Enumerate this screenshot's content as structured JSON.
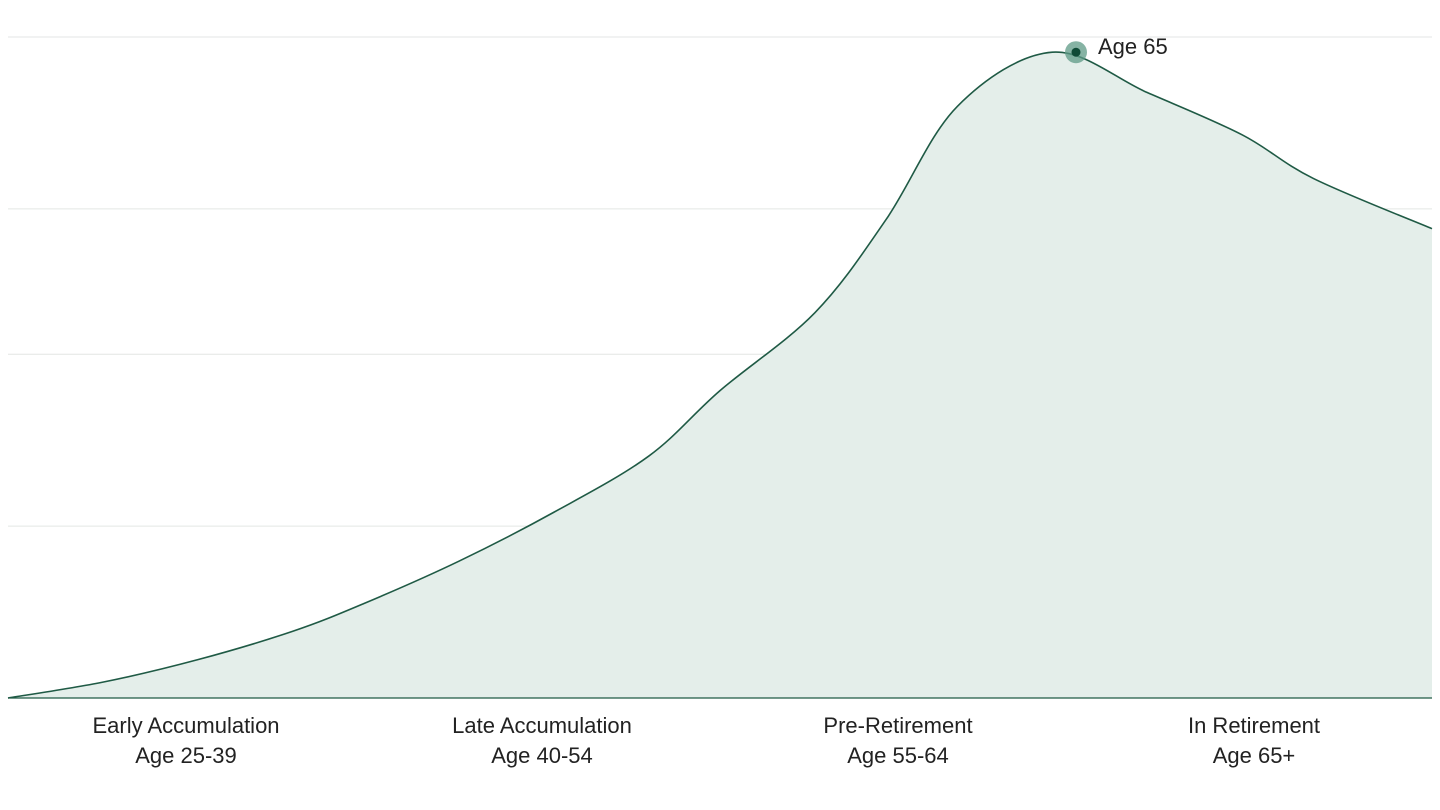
{
  "chart_data": {
    "type": "area",
    "title": "",
    "xlabel": "",
    "ylabel": "",
    "x_range": [
      25,
      85
    ],
    "ylim": [
      0,
      100
    ],
    "y_gridlines": [
      0,
      26,
      52,
      74,
      100
    ],
    "series": [
      {
        "points": [
          {
            "x": 25,
            "y": 0
          },
          {
            "x": 29,
            "y": 2.4
          },
          {
            "x": 33,
            "y": 5.8
          },
          {
            "x": 37,
            "y": 10.1
          },
          {
            "x": 40,
            "y": 14.3
          },
          {
            "x": 44,
            "y": 20.7
          },
          {
            "x": 48,
            "y": 28.1
          },
          {
            "x": 52,
            "y": 36.6
          },
          {
            "x": 55,
            "y": 46.5
          },
          {
            "x": 59,
            "y": 58.3
          },
          {
            "x": 62,
            "y": 72.4
          },
          {
            "x": 65,
            "y": 89.5
          },
          {
            "x": 69,
            "y": 97.7
          },
          {
            "x": 73,
            "y": 91.6
          },
          {
            "x": 77,
            "y": 85.2
          },
          {
            "x": 80,
            "y": 78.6
          },
          {
            "x": 85,
            "y": 71.0
          }
        ],
        "color": "#1f5a45",
        "fill": "#e4eeea"
      }
    ],
    "x_categories": [
      {
        "line1": "Early Accumulation",
        "line2": "Age 25-39",
        "center_x": 32.5
      },
      {
        "line1": "Late Accumulation",
        "line2": "Age 40-54",
        "center_x": 47.5
      },
      {
        "line1": "Pre-Retirement",
        "line2": "Age 55-64",
        "center_x": 62.5
      },
      {
        "line1": "In Retirement",
        "line2": "Age 65+",
        "center_x": 77.5
      }
    ],
    "annotations": [
      {
        "text": "Age 65",
        "x": 70,
        "y": 97.7
      }
    ],
    "grid": true,
    "legend": "none"
  }
}
